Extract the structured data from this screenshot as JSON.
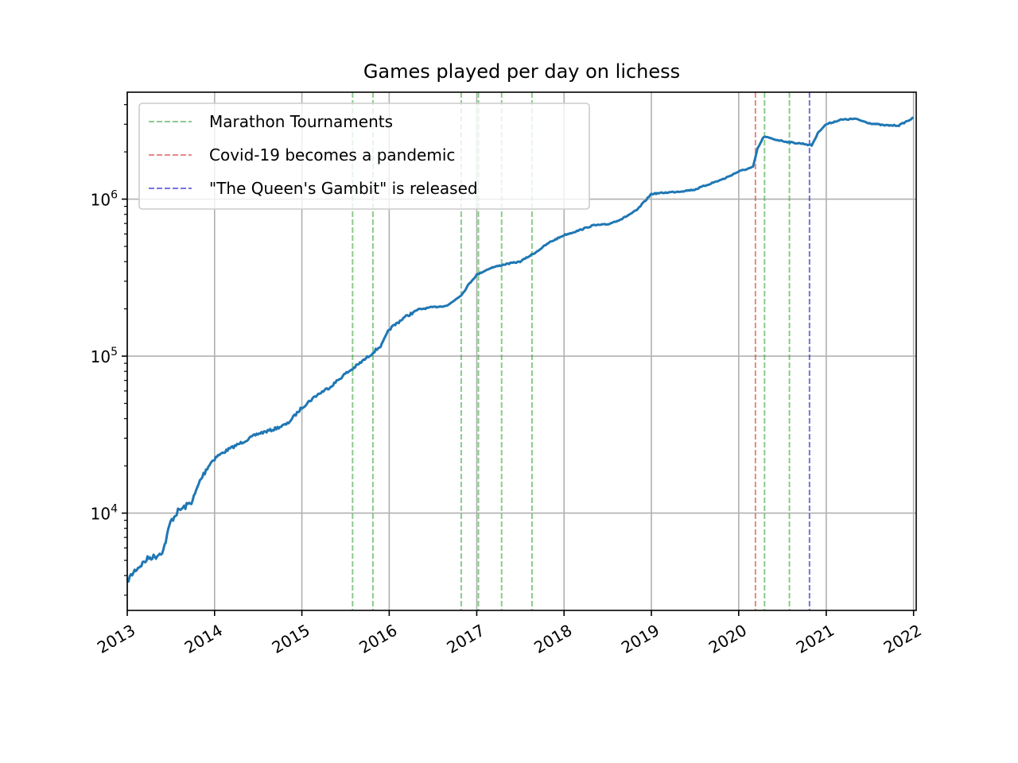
{
  "chart_data": {
    "type": "line",
    "title": "Games played per day on lichess",
    "xlabel": "",
    "ylabel": "",
    "yscale": "log",
    "grid": true,
    "legend_placement": "top-left",
    "xlim": [
      "2013-01-01",
      "2022-01-12"
    ],
    "ylim": [
      2400,
      4800000
    ],
    "x_ticks": [
      "2013",
      "2014",
      "2015",
      "2016",
      "2017",
      "2018",
      "2019",
      "2020",
      "2021",
      "2022"
    ],
    "y_ticks": [
      {
        "value": 10000,
        "base": "10",
        "exp": "4"
      },
      {
        "value": 100000,
        "base": "10",
        "exp": "5"
      },
      {
        "value": 1000000,
        "base": "10",
        "exp": "6"
      }
    ],
    "series": [
      {
        "color": "#1f77b4",
        "x": [
          "2013-01-01",
          "2013-02-01",
          "2013-03-01",
          "2013-04-01",
          "2013-05-01",
          "2013-06-01",
          "2013-07-01",
          "2013-08-01",
          "2013-09-01",
          "2013-10-01",
          "2013-11-01",
          "2013-12-01",
          "2014-01-01",
          "2014-03-01",
          "2014-05-01",
          "2014-07-01",
          "2014-09-01",
          "2014-11-01",
          "2015-01-01",
          "2015-03-01",
          "2015-05-01",
          "2015-07-01",
          "2015-08-01",
          "2015-10-01",
          "2015-12-01",
          "2016-01-01",
          "2016-03-01",
          "2016-05-01",
          "2016-07-01",
          "2016-09-01",
          "2016-11-01",
          "2016-12-01",
          "2017-01-01",
          "2017-03-01",
          "2017-05-01",
          "2017-07-01",
          "2017-09-01",
          "2017-11-01",
          "2018-01-01",
          "2018-03-01",
          "2018-05-01",
          "2018-07-01",
          "2018-09-01",
          "2018-11-01",
          "2019-01-01",
          "2019-03-01",
          "2019-05-01",
          "2019-07-01",
          "2019-09-01",
          "2019-11-01",
          "2020-01-01",
          "2020-03-01",
          "2020-03-20",
          "2020-04-15",
          "2020-06-01",
          "2020-08-01",
          "2020-10-01",
          "2020-11-01",
          "2020-12-01",
          "2021-01-01",
          "2021-03-01",
          "2021-05-01",
          "2021-07-01",
          "2021-09-01",
          "2021-11-01",
          "2022-01-01"
        ],
        "values": [
          3700,
          4300,
          4700,
          5200,
          5300,
          5800,
          8800,
          10300,
          11000,
          12000,
          16000,
          19500,
          22500,
          25500,
          28500,
          32000,
          34000,
          37000,
          47000,
          56000,
          64000,
          77000,
          83000,
          98000,
          118000,
          148000,
          175000,
          198000,
          205000,
          210000,
          248000,
          290000,
          330000,
          365000,
          385000,
          400000,
          455000,
          530000,
          590000,
          630000,
          680000,
          690000,
          750000,
          850000,
          1080000,
          1100000,
          1120000,
          1150000,
          1250000,
          1350000,
          1500000,
          1600000,
          2100000,
          2500000,
          2400000,
          2300000,
          2250000,
          2200000,
          2700000,
          3000000,
          3200000,
          3250000,
          3050000,
          2950000,
          2950000,
          3300000
        ]
      }
    ],
    "vlines": [
      {
        "date": "2015-08-01",
        "color": "#2ca02c",
        "group": 0
      },
      {
        "date": "2015-10-25",
        "color": "#2ca02c",
        "group": 0
      },
      {
        "date": "2016-10-28",
        "color": "#2ca02c",
        "group": 0
      },
      {
        "date": "2017-01-08",
        "color": "#2ca02c",
        "group": 0
      },
      {
        "date": "2017-04-15",
        "color": "#2ca02c",
        "group": 0
      },
      {
        "date": "2017-08-20",
        "color": "#2ca02c",
        "group": 0
      },
      {
        "date": "2020-03-11",
        "color": "#d62728",
        "group": 1
      },
      {
        "date": "2020-04-18",
        "color": "#2ca02c",
        "group": 0
      },
      {
        "date": "2020-07-31",
        "color": "#2ca02c",
        "group": 0
      },
      {
        "date": "2020-10-23",
        "color": "#0000cc",
        "group": 2
      }
    ],
    "legend": [
      {
        "label": "Marathon Tournaments",
        "color": "#2ca02c"
      },
      {
        "label": "Covid-19 becomes a pandemic",
        "color": "#d62728"
      },
      {
        "label": "\"The Queen's Gambit\" is released",
        "color": "#0000cc"
      }
    ]
  }
}
